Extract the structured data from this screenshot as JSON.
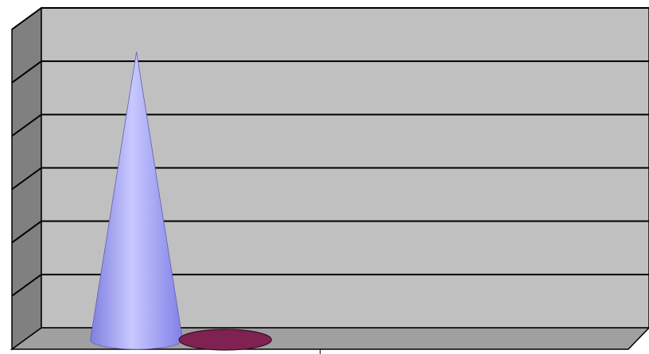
{
  "chart_data": {
    "type": "cone",
    "categories": [
      null,
      null
    ],
    "series": [
      {
        "color": "#9999ff",
        "values": [
          5.4,
          null
        ]
      },
      {
        "color": "#7f2252",
        "values": [
          0,
          null
        ]
      }
    ],
    "ylim": [
      0,
      6
    ],
    "yticks": [
      0,
      1,
      2,
      3,
      4,
      5,
      6
    ],
    "grid": true
  }
}
